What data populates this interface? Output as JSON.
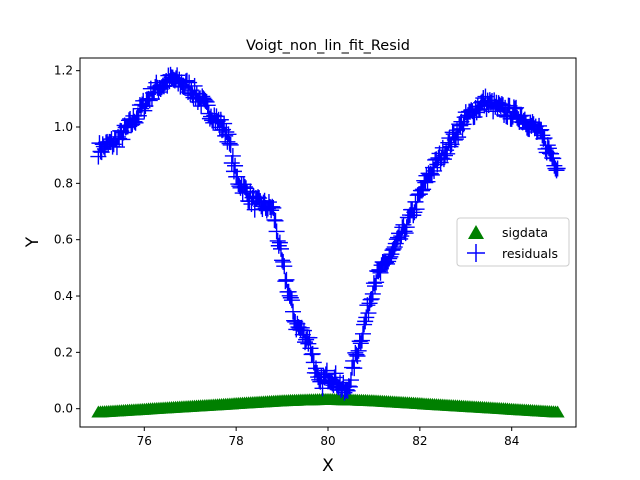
{
  "chart_data": {
    "type": "scatter",
    "title": "Voigt_non_lin_fit_Resid",
    "xlabel": "X",
    "ylabel": "Y",
    "xlim": [
      74.6,
      85.4
    ],
    "ylim": [
      -0.065,
      1.245
    ],
    "xticks": [
      76,
      78,
      80,
      82,
      84
    ],
    "yticks": [
      0.0,
      0.2,
      0.4,
      0.6,
      0.8,
      1.0,
      1.2
    ],
    "xtick_labels": [
      "76",
      "78",
      "80",
      "82",
      "84"
    ],
    "ytick_labels": [
      "0.0",
      "0.2",
      "0.4",
      "0.6",
      "0.8",
      "1.0",
      "1.2"
    ],
    "grid": false,
    "legend": {
      "position": "center-right"
    },
    "series": [
      {
        "name": "sigdata",
        "marker": "triangle",
        "color": "#008000",
        "points": [
          [
            75.0,
            -0.01
          ],
          [
            75.5,
            -0.005
          ],
          [
            76.0,
            0.0
          ],
          [
            76.5,
            0.005
          ],
          [
            77.0,
            0.01
          ],
          [
            77.5,
            0.015
          ],
          [
            78.0,
            0.02
          ],
          [
            78.5,
            0.025
          ],
          [
            79.0,
            0.03
          ],
          [
            79.5,
            0.033
          ],
          [
            80.0,
            0.035
          ],
          [
            80.5,
            0.033
          ],
          [
            81.0,
            0.03
          ],
          [
            81.5,
            0.025
          ],
          [
            82.0,
            0.02
          ],
          [
            82.5,
            0.015
          ],
          [
            83.0,
            0.01
          ],
          [
            83.5,
            0.005
          ],
          [
            84.0,
            0.0
          ],
          [
            84.5,
            -0.005
          ],
          [
            85.0,
            -0.01
          ]
        ]
      },
      {
        "name": "residuals",
        "marker": "plus",
        "color": "#0000ff",
        "points": [
          [
            75.0,
            0.92
          ],
          [
            75.4,
            0.95
          ],
          [
            75.8,
            1.03
          ],
          [
            76.2,
            1.13
          ],
          [
            76.6,
            1.17
          ],
          [
            77.0,
            1.14
          ],
          [
            77.4,
            1.06
          ],
          [
            77.8,
            0.98
          ],
          [
            78.0,
            0.82
          ],
          [
            78.4,
            0.73
          ],
          [
            78.8,
            0.71
          ],
          [
            79.0,
            0.52
          ],
          [
            79.3,
            0.3
          ],
          [
            79.6,
            0.24
          ],
          [
            79.8,
            0.08
          ],
          [
            80.0,
            0.12
          ],
          [
            80.2,
            0.1
          ],
          [
            80.4,
            0.05
          ],
          [
            80.6,
            0.18
          ],
          [
            80.8,
            0.3
          ],
          [
            81.0,
            0.45
          ],
          [
            81.4,
            0.55
          ],
          [
            81.8,
            0.68
          ],
          [
            82.2,
            0.83
          ],
          [
            82.6,
            0.93
          ],
          [
            83.0,
            1.03
          ],
          [
            83.4,
            1.09
          ],
          [
            83.8,
            1.06
          ],
          [
            84.2,
            1.04
          ],
          [
            84.6,
            0.98
          ],
          [
            85.0,
            0.86
          ]
        ]
      }
    ]
  }
}
